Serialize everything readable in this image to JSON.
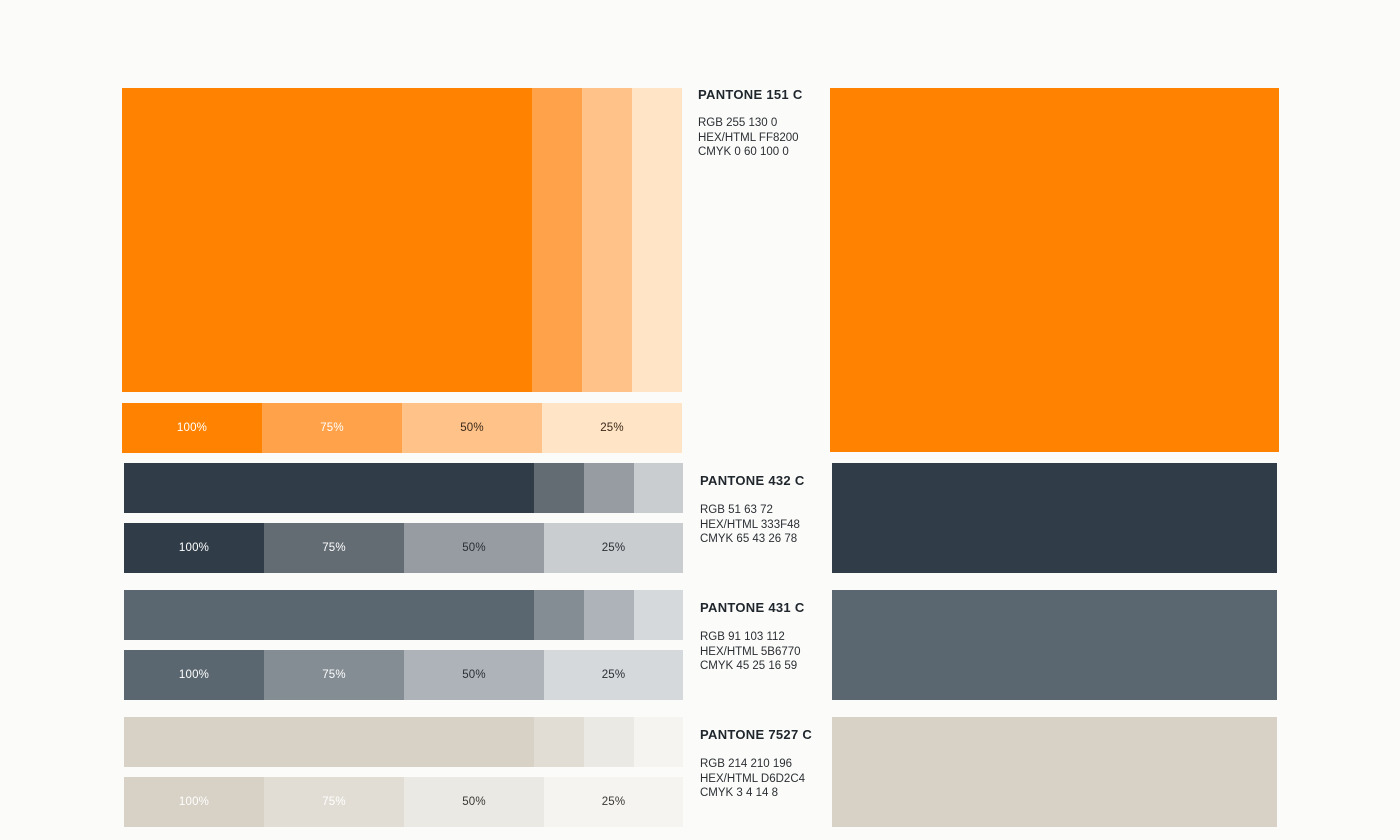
{
  "colors": [
    {
      "name": "PANTONE 151 C",
      "rgb": "RGB 255 130 0",
      "hex": "HEX/HTML FF8200",
      "cmyk": "CMYK 0 60 100 0",
      "swatch": "#ff8200",
      "tints": [
        "#ff8200",
        "#ffa24a",
        "#ffc288",
        "#ffe4c6"
      ],
      "tint_labels": [
        "100%",
        "75%",
        "50%",
        "25%"
      ],
      "label_colors": [
        "#ffffff",
        "#ffffff",
        "#3a2a1a",
        "#3a2a1a"
      ]
    },
    {
      "name": "PANTONE 432 C",
      "rgb": "RGB 51 63 72",
      "hex": "HEX/HTML 333F48",
      "cmyk": "CMYK 65 43 26 78",
      "swatch": "#303d48",
      "tints": [
        "#303d48",
        "#636b73",
        "#969ca2",
        "#c9cdd0"
      ],
      "tint_labels": [
        "100%",
        "75%",
        "50%",
        "25%"
      ],
      "label_colors": [
        "#ffffff",
        "#ffffff",
        "#2a2f34",
        "#2a2f34"
      ]
    },
    {
      "name": "PANTONE 431 C",
      "rgb": "RGB 91 103 112",
      "hex": "HEX/HTML 5B6770",
      "cmyk": "CMYK 45 25 16 59",
      "swatch": "#5b6770",
      "tints": [
        "#5b6770",
        "#848d94",
        "#adb3b8",
        "#d6d9dc"
      ],
      "tint_labels": [
        "100%",
        "75%",
        "50%",
        "25%"
      ],
      "label_colors": [
        "#ffffff",
        "#ffffff",
        "#2a2f34",
        "#2a2f34"
      ]
    },
    {
      "name": "PANTONE 7527 C",
      "rgb": "RGB 214 210 196",
      "hex": "HEX/HTML D6D2C4",
      "cmyk": "CMYK 3 4 14 8",
      "swatch": "#d7d1c6",
      "tints": [
        "#d7d1c6",
        "#e1ddd4",
        "#ebe9e3",
        "#f5f4f1"
      ],
      "tint_labels": [
        "100%",
        "75%",
        "50%",
        "25%"
      ],
      "label_colors": [
        "#ffffff",
        "#ffffff",
        "#3a3834",
        "#3a3834"
      ]
    }
  ]
}
